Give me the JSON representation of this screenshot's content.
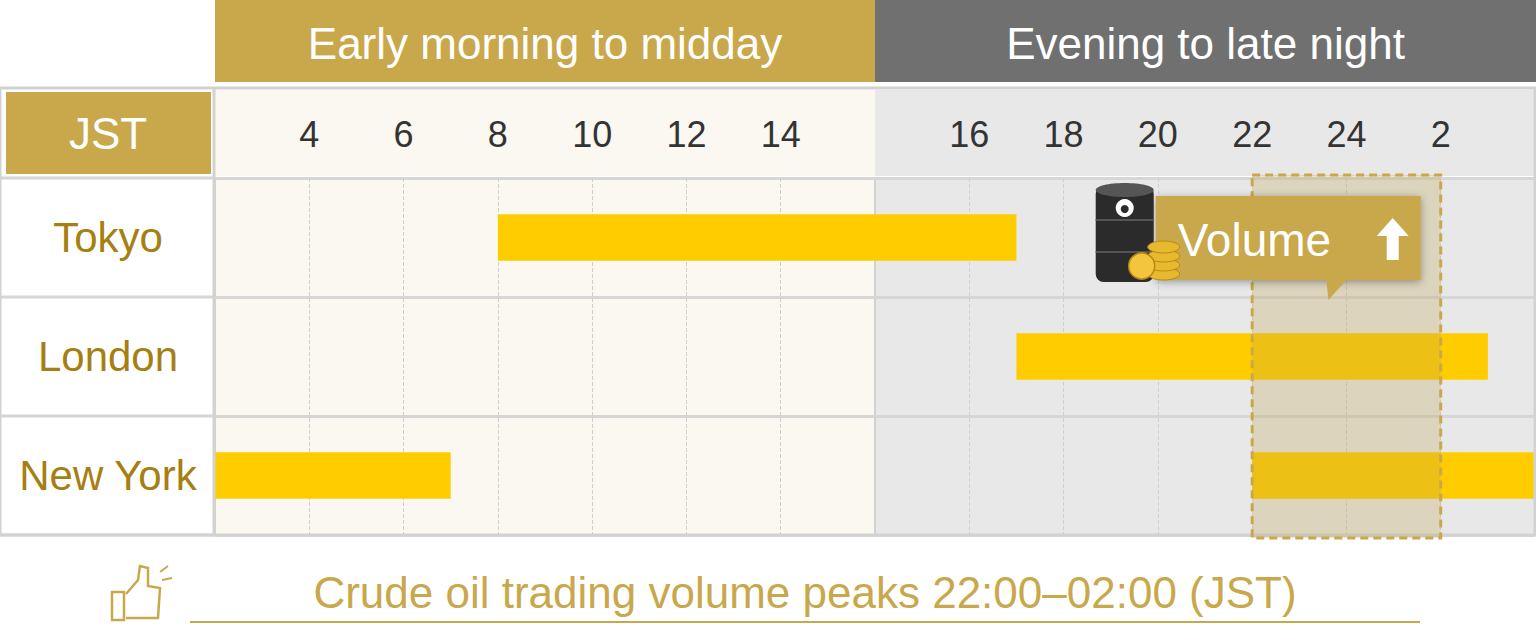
{
  "chart_data": {
    "type": "timeline",
    "title": "Crude oil trading volume peaks 22:00–02:00 (JST)",
    "axis_label": "JST",
    "panels": [
      {
        "title": "Early morning to midday",
        "xlim": [
          2,
          16
        ],
        "xticks": [
          4,
          6,
          8,
          10,
          12,
          14
        ]
      },
      {
        "title": "Evening to late night",
        "xlim": [
          14,
          28
        ],
        "xticks": [
          16,
          18,
          20,
          22,
          24,
          {
            "value": 26,
            "label": "2"
          }
        ]
      }
    ],
    "categories": [
      "Tokyo",
      "London",
      "New York"
    ],
    "sessions": [
      [
        [
          8,
          17
        ]
      ],
      [
        [
          17,
          27
        ]
      ],
      [
        [
          2,
          7
        ],
        [
          22,
          28
        ]
      ]
    ],
    "color": "#ffcc00",
    "highlight": {
      "range": [
        22,
        26
      ],
      "label": "Volume"
    },
    "grid": true
  }
}
